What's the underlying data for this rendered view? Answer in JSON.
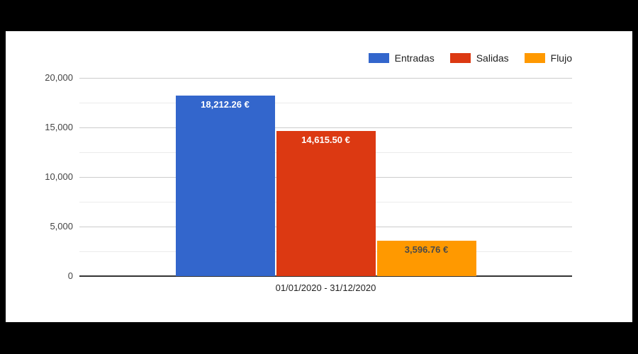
{
  "window": {
    "background_color": "#000000",
    "panel_background_color": "#ffffff"
  },
  "chart_data": {
    "type": "bar",
    "title": "",
    "xlabel": "",
    "ylabel": "",
    "categories": [
      "01/01/2020 - 31/12/2020"
    ],
    "series": [
      {
        "name": "Entradas",
        "values": [
          18212.26
        ],
        "data_labels": [
          "18,212.26 €"
        ],
        "color": "#3366CC",
        "label_color": "#ffffff"
      },
      {
        "name": "Salidas",
        "values": [
          14615.5
        ],
        "data_labels": [
          "14,615.50 €"
        ],
        "color": "#DC3912",
        "label_color": "#ffffff"
      },
      {
        "name": "Flujo",
        "values": [
          3596.76
        ],
        "data_labels": [
          "3,596.76 €"
        ],
        "color": "#FF9900",
        "label_color": "#4a4a4a"
      }
    ],
    "ylim": [
      0,
      20000
    ],
    "yticks": [
      {
        "value": 0,
        "label": "0"
      },
      {
        "value": 5000,
        "label": "5,000"
      },
      {
        "value": 10000,
        "label": "10,000"
      },
      {
        "value": 15000,
        "label": "15,000"
      },
      {
        "value": 20000,
        "label": "20,000"
      }
    ],
    "minor_gridlines": [
      2500,
      7500,
      12500,
      17500
    ],
    "grid": true,
    "legend_position": "top-right"
  },
  "style": {
    "gridline_color": "#cccccc",
    "minor_gridline_color": "#ebebeb",
    "baseline_color": "#333333",
    "tick_label_color": "#444444",
    "category_label_color": "#222222"
  }
}
